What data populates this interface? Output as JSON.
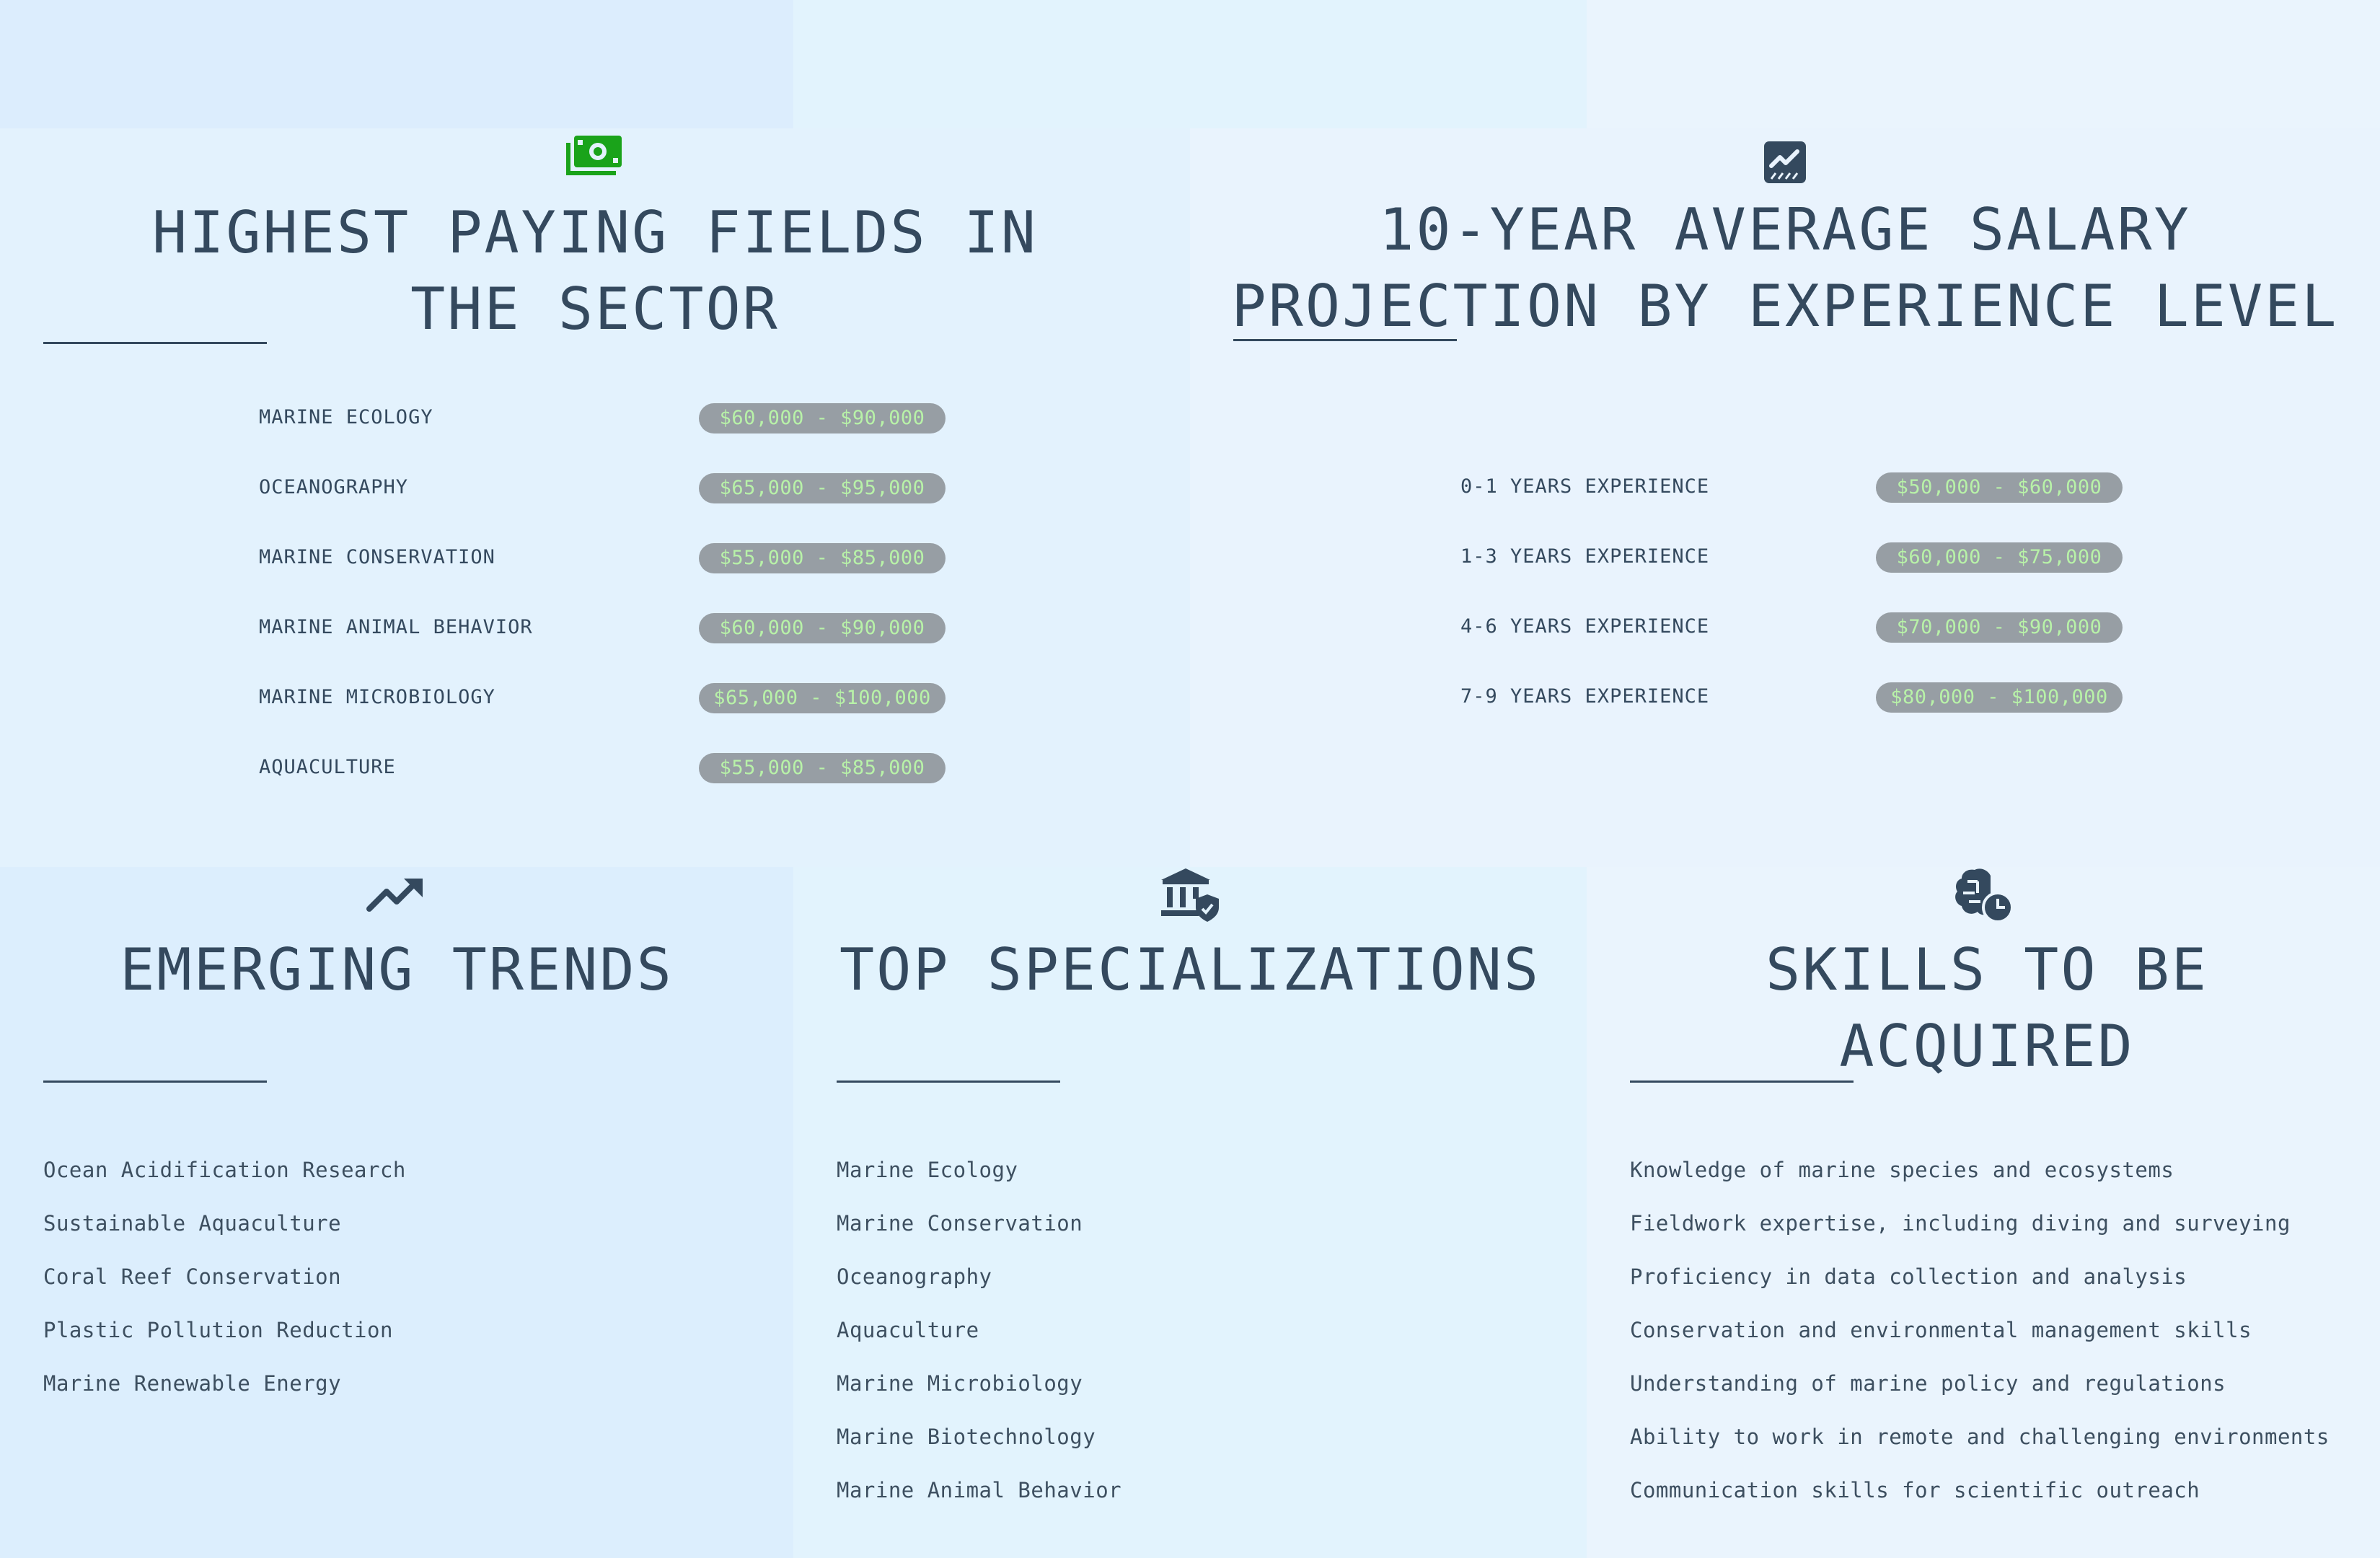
{
  "colors": {
    "heading": "#34495e",
    "pill_background": "#979ea4",
    "pill_text": "#b8f2a8",
    "money_icon": "#1aa31a"
  },
  "highest_paying": {
    "icon": "money-bill-icon",
    "title": "HIGHEST PAYING FIELDS IN THE SECTOR",
    "rows": [
      {
        "label": "MARINE ECOLOGY",
        "range": "$60,000 - $90,000"
      },
      {
        "label": "OCEANOGRAPHY",
        "range": "$65,000 - $95,000"
      },
      {
        "label": "MARINE CONSERVATION",
        "range": "$55,000 - $85,000"
      },
      {
        "label": "MARINE ANIMAL BEHAVIOR",
        "range": "$60,000 - $90,000"
      },
      {
        "label": "MARINE MICROBIOLOGY",
        "range": "$65,000 - $100,000"
      },
      {
        "label": "AQUACULTURE",
        "range": "$55,000 - $85,000"
      }
    ]
  },
  "salary_projection": {
    "icon": "chart-area-icon",
    "title": "10-YEAR AVERAGE SALARY PROJECTION BY EXPERIENCE LEVEL",
    "rows": [
      {
        "label": "0-1 YEARS EXPERIENCE",
        "range": "$50,000 - $60,000"
      },
      {
        "label": "1-3 YEARS EXPERIENCE",
        "range": "$60,000 - $75,000"
      },
      {
        "label": "4-6 YEARS EXPERIENCE",
        "range": "$70,000 - $90,000"
      },
      {
        "label": "7-9 YEARS EXPERIENCE",
        "range": "$80,000 - $100,000"
      }
    ]
  },
  "emerging_trends": {
    "icon": "trending-up-icon",
    "title": "EMERGING TRENDS",
    "items": [
      "Ocean Acidification Research",
      "Sustainable Aquaculture",
      "Coral Reef Conservation",
      "Plastic Pollution Reduction",
      "Marine Renewable Energy"
    ]
  },
  "top_specializations": {
    "icon": "building-shield-icon",
    "title": "TOP SPECIALIZATIONS",
    "items": [
      "Marine Ecology",
      "Marine Conservation",
      "Oceanography",
      "Aquaculture",
      "Marine Microbiology",
      "Marine Biotechnology",
      "Marine Animal Behavior"
    ]
  },
  "skills": {
    "icon": "brain-clock-icon",
    "title": "SKILLS TO BE ACQUIRED",
    "items": [
      "Knowledge of marine species and ecosystems",
      "Fieldwork expertise, including diving and surveying",
      "Proficiency in data collection and analysis",
      "Conservation and environmental management skills",
      "Understanding of marine policy and regulations",
      "Ability to work in remote and challenging environments",
      "Communication skills for scientific outreach"
    ]
  }
}
